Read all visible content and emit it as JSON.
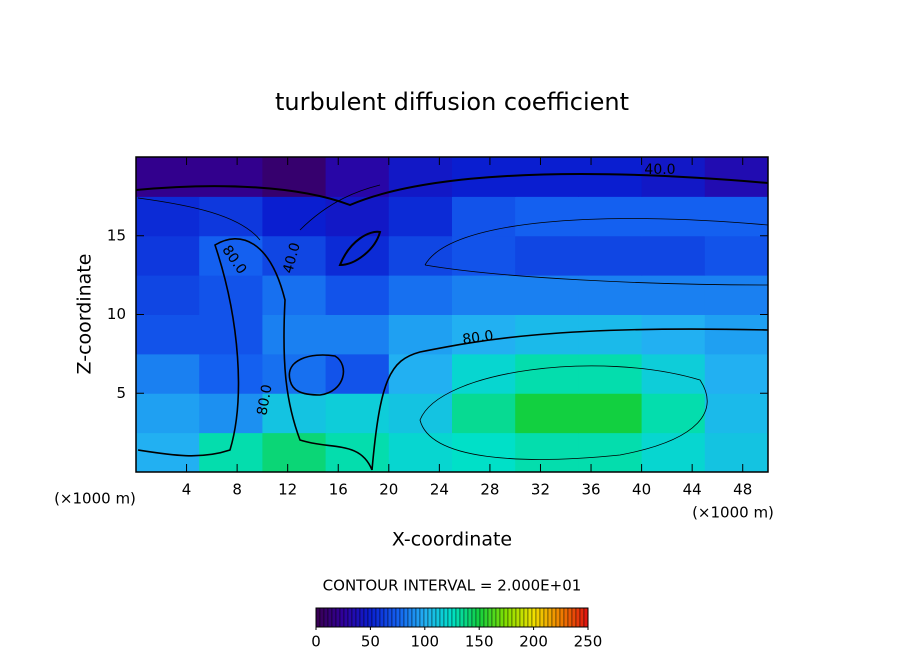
{
  "chart_data": {
    "type": "contour",
    "title": "turbulent diffusion coefficient",
    "x_label": "X-coordinate",
    "y_label": "Z-coordinate",
    "x_unit_left": "(×1000 m)",
    "x_unit_right": "(×1000 m)",
    "contour_interval": "CONTOUR INTERVAL = 2.000E+01",
    "xlim": [
      0,
      50
    ],
    "ylim": [
      0,
      20
    ],
    "xticks": [
      4,
      8,
      12,
      16,
      20,
      24,
      28,
      32,
      36,
      40,
      44,
      48
    ],
    "yticks": [
      5,
      10,
      15
    ],
    "x": [
      2.5,
      7.5,
      12.5,
      17.5,
      22.5,
      27.5,
      32.5,
      37.5,
      42.5,
      47.5
    ],
    "y": [
      1.25,
      3.75,
      6.25,
      8.75,
      11.25,
      13.75,
      16.25,
      18.75
    ],
    "values": [
      [
        100,
        130,
        140,
        130,
        120,
        125,
        130,
        130,
        120,
        110
      ],
      [
        95,
        90,
        110,
        115,
        110,
        135,
        150,
        150,
        130,
        105
      ],
      [
        85,
        75,
        80,
        70,
        100,
        120,
        130,
        130,
        115,
        100
      ],
      [
        70,
        70,
        85,
        85,
        95,
        100,
        105,
        105,
        100,
        95
      ],
      [
        65,
        70,
        80,
        70,
        80,
        85,
        85,
        85,
        85,
        85
      ],
      [
        60,
        75,
        65,
        55,
        65,
        70,
        65,
        65,
        65,
        70
      ],
      [
        55,
        60,
        50,
        45,
        55,
        70,
        75,
        75,
        75,
        75
      ],
      [
        20,
        20,
        10,
        30,
        45,
        50,
        50,
        50,
        45,
        35
      ]
    ],
    "contour_labels": [
      {
        "value": 40,
        "label": "40.0"
      },
      {
        "value": 80,
        "label": "80.0"
      },
      {
        "value": 40,
        "label": "40.0"
      },
      {
        "value": 80,
        "label": "80.0"
      },
      {
        "value": 80,
        "label": "80.0"
      }
    ],
    "clim": [
      0,
      250
    ],
    "cticks": [
      0,
      50,
      100,
      150,
      200,
      250
    ],
    "colormap": [
      "#3a0050",
      "#30009c",
      "#0a1ed0",
      "#1460f0",
      "#22b0f2",
      "#00e0c8",
      "#12d040",
      "#86e000",
      "#f0e000",
      "#f08000",
      "#e01010"
    ]
  }
}
